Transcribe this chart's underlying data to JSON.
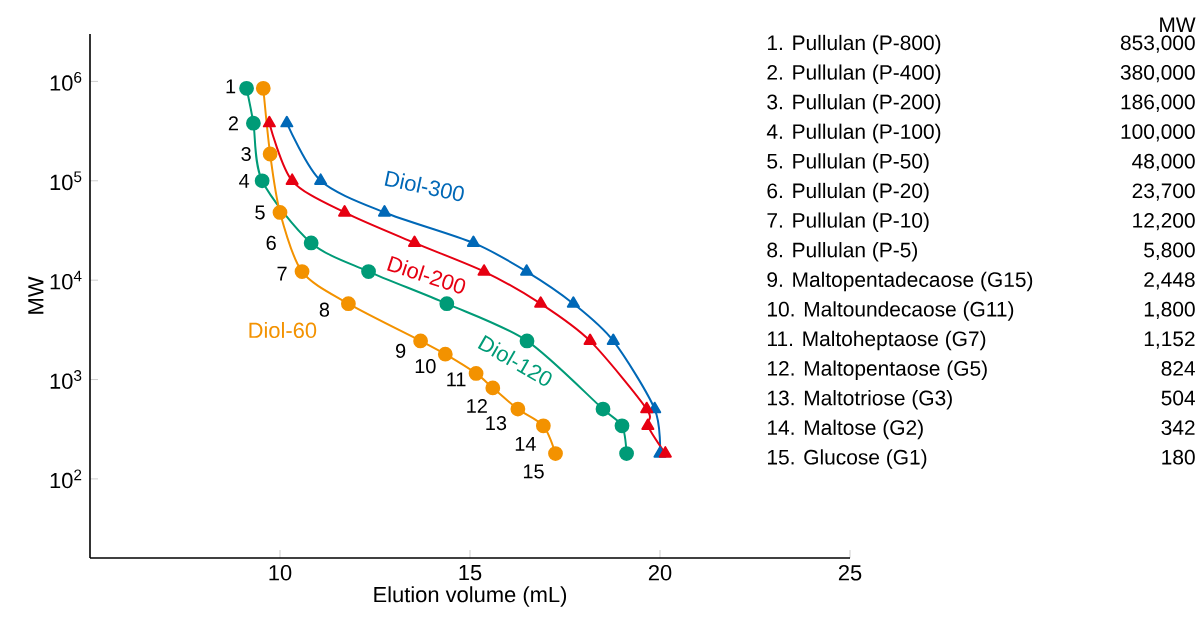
{
  "chart_data": {
    "type": "line",
    "xlabel": "Elution volume (mL)",
    "ylabel": "MW",
    "log": "y",
    "xlim": [
      5,
      25
    ],
    "xticks": [
      10,
      15,
      20,
      25
    ],
    "ylim": [
      16,
      3000000
    ],
    "yticks": [
      {
        "value": 100,
        "label": "10$^{2}$"
      },
      {
        "value": 1000,
        "label": "10$^{3}$"
      },
      {
        "value": 10000,
        "label": "10$^{4}$"
      },
      {
        "value": 100000,
        "label": "10$^{5}$"
      },
      {
        "value": 1000000,
        "label": "10$^{6}$"
      }
    ],
    "series": [
      {
        "name": "Diol-300",
        "color": "#0068b7",
        "marker": "triangle",
        "x": [
          10.18,
          11.07,
          12.75,
          15.09,
          16.49,
          17.72,
          18.77,
          19.86,
          20.0
        ],
        "values": [
          380000,
          100000,
          48000,
          23700,
          12200,
          5800,
          2448,
          504,
          180
        ]
      },
      {
        "name": "Diol-200",
        "color": "#e60012",
        "marker": "triangle",
        "x": [
          9.72,
          10.32,
          11.7,
          13.54,
          15.37,
          16.86,
          18.16,
          19.65,
          19.68,
          20.14
        ],
        "values": [
          380000,
          100000,
          48000,
          23700,
          12200,
          5800,
          2448,
          504,
          342,
          180
        ]
      },
      {
        "name": "Diol-120",
        "color": "#009b77",
        "marker": "circle",
        "x": [
          9.12,
          9.3,
          9.53,
          10.82,
          12.33,
          14.39,
          16.5,
          18.5,
          19.0,
          19.12
        ],
        "values": [
          853000,
          380000,
          100000,
          23700,
          12200,
          5800,
          2448,
          504,
          342,
          180
        ]
      },
      {
        "name": "Diol-60",
        "color": "#f39200",
        "marker": "circle",
        "x": [
          9.56,
          9.74,
          10.0,
          10.58,
          11.8,
          13.7,
          14.35,
          15.16,
          15.6,
          16.26,
          16.93,
          17.25
        ],
        "values": [
          853000,
          186000,
          48000,
          12200,
          5800,
          2448,
          1800,
          1152,
          824,
          504,
          342,
          180
        ]
      }
    ],
    "annotations": [
      {
        "text": "1",
        "x": 9.12,
        "y": 853000
      },
      {
        "text": "2",
        "x": 9.3,
        "y": 380000
      },
      {
        "text": "3",
        "x": 9.74,
        "y": 186000
      },
      {
        "text": "4",
        "x": 9.53,
        "y": 100000
      },
      {
        "text": "5",
        "x": 10.0,
        "y": 48000
      },
      {
        "text": "6",
        "x": 10.82,
        "y": 23700
      },
      {
        "text": "7",
        "x": 10.58,
        "y": 12200
      },
      {
        "text": "8",
        "x": 11.8,
        "y": 5800
      },
      {
        "text": "9",
        "x": 13.7,
        "y": 2448
      },
      {
        "text": "10",
        "x": 14.35,
        "y": 1800
      },
      {
        "text": "11",
        "x": 15.16,
        "y": 1152
      },
      {
        "text": "12",
        "x": 15.6,
        "y": 824
      },
      {
        "text": "13",
        "x": 16.26,
        "y": 504
      },
      {
        "text": "14",
        "x": 16.93,
        "y": 342
      },
      {
        "text": "15",
        "x": 17.25,
        "y": 180
      },
      "MW",
      "1. Pullulan (P-800)",
      "853,000",
      "2. Pullulan (P-400)",
      "380,000",
      "3. Pullulan (P-200)",
      "186,000",
      "4. Pullulan (P-100)",
      "100,000",
      "5. Pullulan (P-50)",
      "48,000",
      "6. Pullulan (P-20)",
      "23,700",
      "7. Pullulan (P-10)",
      "12,200",
      "8. Pullulan (P-5)",
      "5,800",
      "9. Maltopentadecaose (G15)",
      "2,448",
      "10. Maltoundecaose (G11)",
      "1,800",
      "11. Maltoheptaose (G7)",
      "1,152",
      "12. Maltopentaose (G5)",
      "824",
      "13. Maltotriose (G3)",
      "504",
      "14. Maltose (G2)",
      "342",
      "15. Glucose (G1)",
      "180"
    ]
  }
}
